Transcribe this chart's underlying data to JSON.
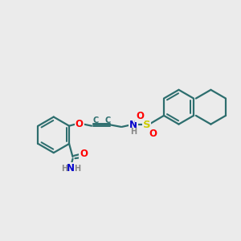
{
  "bg_color": "#ebebeb",
  "bond_color": "#2d6e6e",
  "atom_colors": {
    "O": "#ff0000",
    "N": "#0000cc",
    "S": "#cccc00",
    "H": "#888888",
    "C": "#2d6e6e"
  },
  "line_width": 1.6,
  "font_size": 9.5
}
